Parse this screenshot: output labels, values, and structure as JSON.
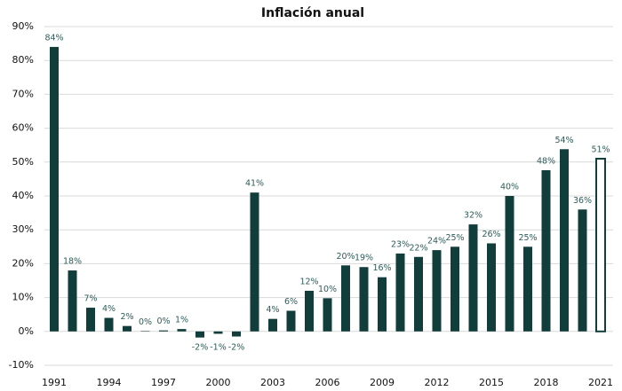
{
  "chart_data": {
    "type": "bar",
    "title": "Inflación anual",
    "categories": [
      "1991",
      null,
      null,
      "1994",
      null,
      null,
      "1997",
      null,
      null,
      "2000",
      null,
      null,
      "2003",
      null,
      null,
      "2006",
      null,
      null,
      "2009",
      null,
      null,
      "2012",
      null,
      null,
      "2015",
      null,
      null,
      "2018",
      null,
      null,
      "2021"
    ],
    "values": [
      84,
      18,
      7,
      4,
      1.6,
      0.1,
      0.3,
      0.7,
      -1.8,
      -0.7,
      -1.5,
      41,
      3.7,
      6.1,
      12,
      9.8,
      19.5,
      19,
      16,
      23,
      22,
      24,
      25,
      31.6,
      26,
      40,
      25,
      47.6,
      53.8,
      36,
      51
    ],
    "value_labels": [
      "84%",
      "18%",
      "7%",
      "4%",
      "2%",
      "0%",
      "0%",
      "1%",
      "-2%",
      "-1%",
      "-2%",
      "41%",
      "4%",
      "6%",
      "12%",
      "10%",
      "20%",
      "19%",
      "16%",
      "23%",
      "22%",
      "24%",
      "25%",
      "32%",
      "26%",
      "40%",
      "25%",
      "48%",
      "54%",
      "36%",
      "51%"
    ],
    "color": "#113e3b",
    "last_bar_fill": "#ffffff",
    "ylim": [
      -10,
      90
    ],
    "yticks": [
      {
        "value": -10,
        "label": "-10%"
      },
      {
        "value": 0,
        "label": "0%"
      },
      {
        "value": 10,
        "label": "10%"
      },
      {
        "value": 20,
        "label": "20%"
      },
      {
        "value": 30,
        "label": "30%"
      },
      {
        "value": 40,
        "label": "40%"
      },
      {
        "value": 50,
        "label": "50%"
      },
      {
        "value": 60,
        "label": "60%"
      },
      {
        "value": 70,
        "label": "70%"
      },
      {
        "value": 80,
        "label": "80%"
      },
      {
        "value": 90,
        "label": "90%"
      }
    ],
    "grid": true
  }
}
